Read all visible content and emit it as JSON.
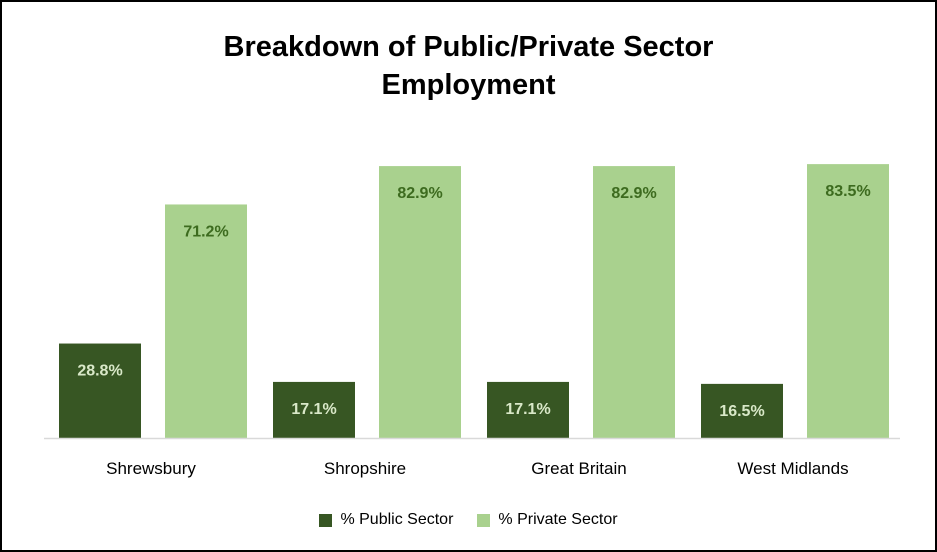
{
  "chart_data": {
    "type": "bar",
    "title": [
      "Breakdown of Public/Private Sector",
      "Employment"
    ],
    "categories": [
      "Shrewsbury",
      "Shropshire",
      "Great Britain",
      "West Midlands"
    ],
    "series": [
      {
        "name": "% Public Sector",
        "values": [
          28.8,
          17.1,
          17.1,
          16.5
        ],
        "labels": [
          "28.8%",
          "17.1%",
          "17.1%",
          "16.5%"
        ],
        "color": "#375623",
        "label_color": "#d9e8c8"
      },
      {
        "name": "% Private Sector",
        "values": [
          71.2,
          82.9,
          82.9,
          83.5
        ],
        "labels": [
          "71.2%",
          "82.9%",
          "82.9%",
          "83.5%"
        ],
        "color": "#a9d18e",
        "label_color": "#3d6b1f"
      }
    ],
    "ylim": [
      0,
      90
    ],
    "grid": false,
    "legend_position": "bottom"
  }
}
